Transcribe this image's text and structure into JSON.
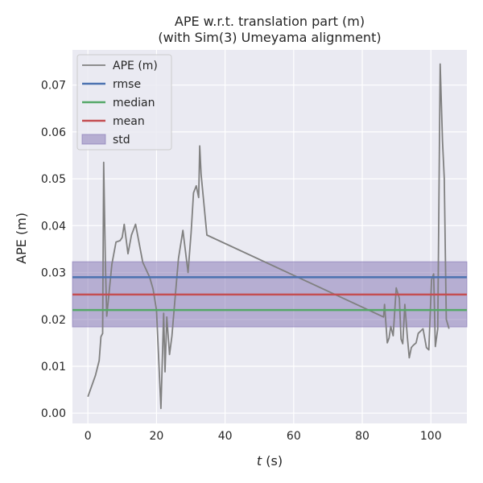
{
  "chart_data": {
    "type": "line",
    "title_line1": "APE w.r.t. translation part (m)",
    "title_line2": "(with Sim(3) Umeyama alignment)",
    "xlabel_symbol": "t",
    "xlabel_unit": " (s)",
    "ylabel": "APE (m)",
    "xlim": [
      -4.5,
      110.5
    ],
    "ylim": [
      -0.0022,
      0.0775
    ],
    "x_ticks": [
      0,
      20,
      40,
      60,
      80,
      100
    ],
    "y_ticks": [
      0.0,
      0.01,
      0.02,
      0.03,
      0.04,
      0.05,
      0.06,
      0.07
    ],
    "y_tick_labels": [
      "0.00",
      "0.01",
      "0.02",
      "0.03",
      "0.04",
      "0.05",
      "0.06",
      "0.07"
    ],
    "legend_position": "upper-left",
    "colors": {
      "background": "#eaeaf2",
      "grid": "#ffffff",
      "ape": "#808080",
      "rmse": "#4c72b0",
      "median": "#55a868",
      "mean": "#c44e52",
      "std": "#8172b2"
    },
    "statistics": {
      "rmse": 0.029,
      "median": 0.022,
      "mean": 0.0253,
      "std_low": 0.0184,
      "std_high": 0.0323
    },
    "legend": [
      {
        "label": "APE (m)",
        "kind": "line",
        "color_key": "ape"
      },
      {
        "label": "rmse",
        "kind": "line",
        "color_key": "rmse"
      },
      {
        "label": "median",
        "kind": "line",
        "color_key": "median"
      },
      {
        "label": "mean",
        "kind": "line",
        "color_key": "mean"
      },
      {
        "label": "std",
        "kind": "patch",
        "color_key": "std"
      }
    ],
    "series": [
      {
        "name": "APE (m)",
        "x": [
          0,
          2.2,
          3.3,
          3.8,
          4.3,
          4.6,
          5.1,
          5.5,
          7.0,
          8.2,
          9.4,
          10.0,
          10.6,
          11.7,
          12.7,
          13.9,
          16.0,
          18.0,
          19.0,
          20.0,
          21.3,
          22.1,
          22.5,
          23.0,
          23.8,
          24.5,
          25.2,
          26.4,
          27.7,
          29.2,
          30.1,
          30.8,
          31.6,
          32.3,
          32.6,
          33.0,
          34.7,
          86.2,
          86.5,
          87.3,
          87.8,
          88.3,
          89.0,
          89.9,
          90.8,
          91.3,
          91.8,
          92.4,
          93.1,
          93.7,
          94.3,
          94.9,
          95.7,
          96.3,
          97.7,
          98.7,
          99.4,
          100.2,
          100.8,
          101.3,
          102.0,
          102.7,
          103.4,
          103.9,
          104.5,
          105.3
        ],
        "y": [
          0.0035,
          0.008,
          0.0112,
          0.0163,
          0.017,
          0.0535,
          0.032,
          0.0207,
          0.0318,
          0.0365,
          0.0368,
          0.0375,
          0.0403,
          0.034,
          0.038,
          0.0403,
          0.0322,
          0.029,
          0.0265,
          0.022,
          0.001,
          0.0213,
          0.0088,
          0.0205,
          0.0125,
          0.0165,
          0.0225,
          0.033,
          0.039,
          0.03,
          0.0385,
          0.047,
          0.0485,
          0.046,
          0.057,
          0.051,
          0.038,
          0.0205,
          0.0232,
          0.015,
          0.016,
          0.0185,
          0.0165,
          0.0267,
          0.0245,
          0.0158,
          0.0148,
          0.0232,
          0.0165,
          0.0118,
          0.014,
          0.0145,
          0.015,
          0.017,
          0.018,
          0.014,
          0.0135,
          0.0285,
          0.0297,
          0.0142,
          0.018,
          0.0745,
          0.058,
          0.05,
          0.02,
          0.018
        ]
      }
    ]
  }
}
